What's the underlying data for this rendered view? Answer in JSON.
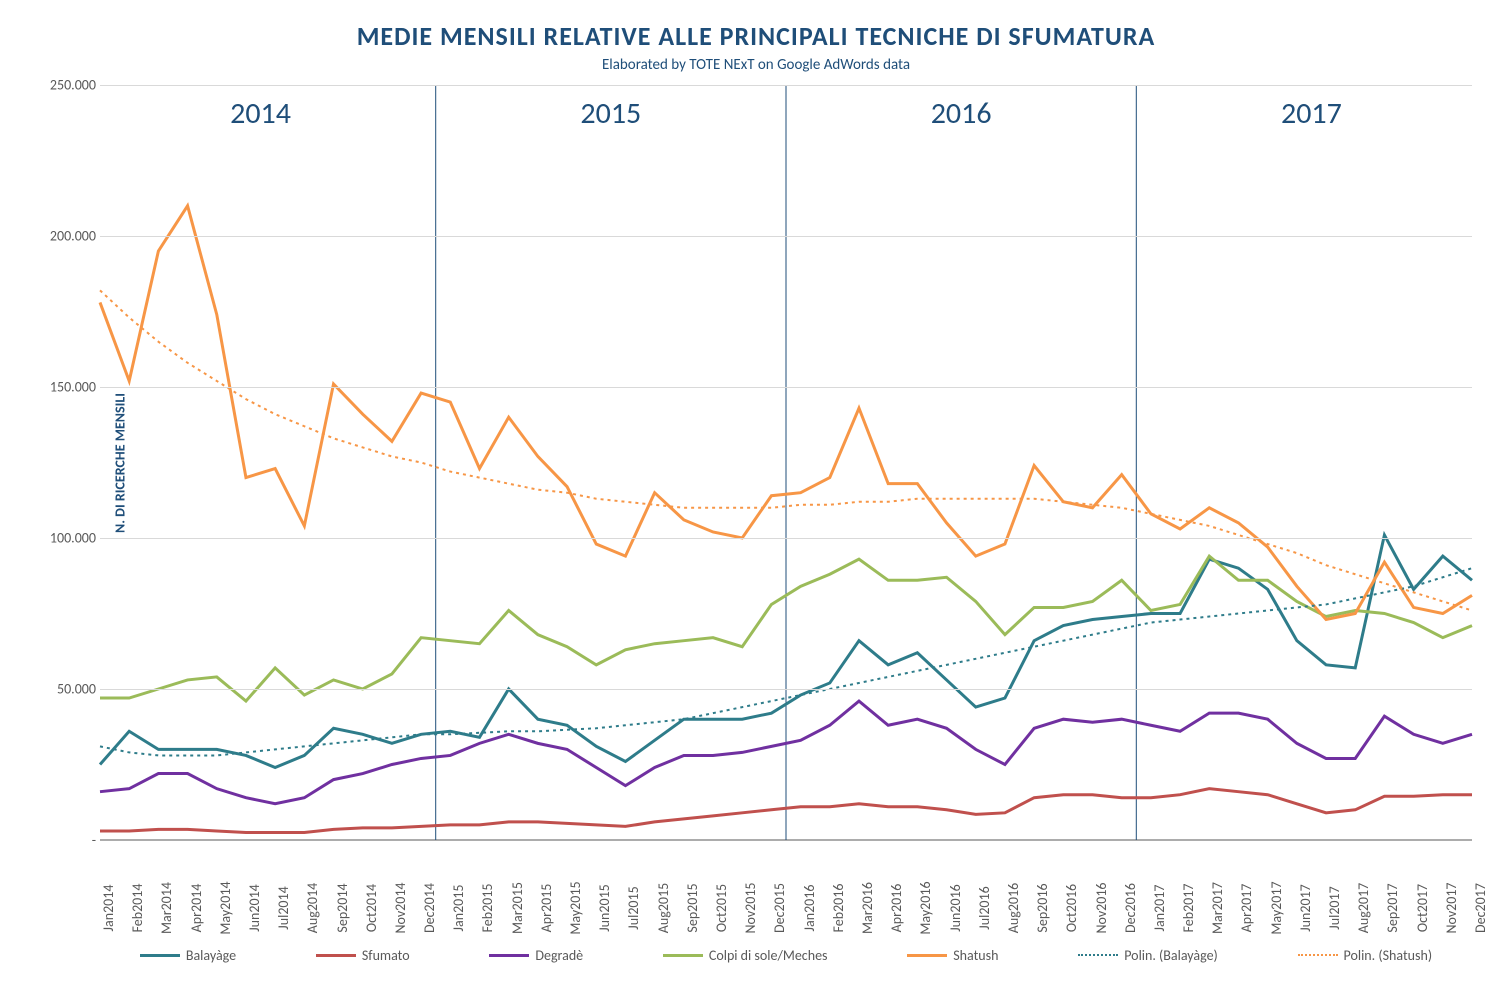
{
  "chart": {
    "type": "line",
    "title": "MEDIE MENSILI RELATIVE ALLE PRINCIPALI TECNICHE DI SFUMATURA",
    "subtitle": "Elaborated by TOTE NExT on Google AdWords data",
    "title_fontsize": 26,
    "subtitle_fontsize": 15,
    "title_color": "#1f4e79",
    "background_color": "#ffffff",
    "grid_color": "#d9d9d9",
    "axis_text_color": "#595959",
    "ylabel": "N. DI RICERCHE MENSILI",
    "ylabel_fontsize": 14,
    "ylim": [
      0,
      250000
    ],
    "ytick_step": 50000,
    "yticks": [
      "-",
      "50.000",
      "100.000",
      "150.000",
      "200.000",
      "250.000"
    ],
    "year_labels": [
      "2014",
      "2015",
      "2016",
      "2017"
    ],
    "year_fontsize": 30,
    "x_labels": [
      "Jan2014",
      "Feb2014",
      "Mar2014",
      "Apr2014",
      "May2014",
      "Jun2014",
      "Jul2014",
      "Aug2014",
      "Sep2014",
      "Oct2014",
      "Nov2014",
      "Dec2014",
      "Jan2015",
      "Feb2015",
      "Mar2015",
      "Apr2015",
      "May2015",
      "Jun2015",
      "Jul2015",
      "Aug2015",
      "Sep2015",
      "Oct2015",
      "Nov2015",
      "Dec2015",
      "Jan2016",
      "Feb2016",
      "Mar2016",
      "Apr2016",
      "May2016",
      "Jun2016",
      "Jul2016",
      "Aug2016",
      "Sep2016",
      "Oct2016",
      "Nov2016",
      "Dec2016",
      "Jan2017",
      "Feb2017",
      "Mar2017",
      "Apr2017",
      "May2017",
      "Jun2017",
      "Jul2017",
      "Aug2017",
      "Sep2017",
      "Oct2017",
      "Nov2017",
      "Dec2017"
    ],
    "series": [
      {
        "name": "Balayàge",
        "color": "#2e7c8a",
        "line_width": 3,
        "style": "solid",
        "values": [
          25000,
          36000,
          30000,
          30000,
          30000,
          28000,
          24000,
          28000,
          37000,
          35000,
          32000,
          35000,
          36000,
          34000,
          50000,
          40000,
          38000,
          31000,
          26000,
          33000,
          40000,
          40000,
          40000,
          42000,
          48000,
          52000,
          66000,
          58000,
          62000,
          53000,
          44000,
          47000,
          66000,
          71000,
          73000,
          74000,
          75000,
          75000,
          93000,
          90000,
          83000,
          66000,
          58000,
          57000,
          101000,
          83000,
          94000,
          86000
        ]
      },
      {
        "name": "Sfumato",
        "color": "#c0504d",
        "line_width": 3,
        "style": "solid",
        "values": [
          3000,
          3000,
          3500,
          3500,
          3000,
          2500,
          2500,
          2500,
          3500,
          4000,
          4000,
          4500,
          5000,
          5000,
          6000,
          6000,
          5500,
          5000,
          4500,
          6000,
          7000,
          8000,
          9000,
          10000,
          11000,
          11000,
          12000,
          11000,
          11000,
          10000,
          8500,
          9000,
          14000,
          15000,
          15000,
          14000,
          14000,
          15000,
          17000,
          16000,
          15000,
          12000,
          9000,
          10000,
          14500,
          14500,
          15000,
          15000
        ]
      },
      {
        "name": "Degradè",
        "color": "#7030a0",
        "line_width": 3,
        "style": "solid",
        "values": [
          16000,
          17000,
          22000,
          22000,
          17000,
          14000,
          12000,
          14000,
          20000,
          22000,
          25000,
          27000,
          28000,
          32000,
          35000,
          32000,
          30000,
          24000,
          18000,
          24000,
          28000,
          28000,
          29000,
          31000,
          33000,
          38000,
          46000,
          38000,
          40000,
          37000,
          30000,
          25000,
          37000,
          40000,
          39000,
          40000,
          38000,
          36000,
          42000,
          42000,
          40000,
          32000,
          27000,
          27000,
          41000,
          35000,
          32000,
          35000
        ]
      },
      {
        "name": "Colpi di sole/Meches",
        "color": "#9bbb59",
        "line_width": 3,
        "style": "solid",
        "values": [
          47000,
          47000,
          50000,
          53000,
          54000,
          46000,
          57000,
          48000,
          53000,
          50000,
          55000,
          67000,
          66000,
          65000,
          76000,
          68000,
          64000,
          58000,
          63000,
          65000,
          66000,
          67000,
          64000,
          78000,
          84000,
          88000,
          93000,
          86000,
          86000,
          87000,
          79000,
          68000,
          77000,
          77000,
          79000,
          86000,
          76000,
          78000,
          94000,
          86000,
          86000,
          79000,
          74000,
          76000,
          75000,
          72000,
          67000,
          71000
        ]
      },
      {
        "name": "Shatush",
        "color": "#f79646",
        "line_width": 3,
        "style": "solid",
        "values": [
          178000,
          152000,
          195000,
          210000,
          174000,
          120000,
          123000,
          104000,
          151000,
          141000,
          132000,
          148000,
          145000,
          123000,
          140000,
          127000,
          117000,
          98000,
          94000,
          115000,
          106000,
          102000,
          100000,
          114000,
          115000,
          120000,
          143000,
          118000,
          118000,
          105000,
          94000,
          98000,
          124000,
          112000,
          110000,
          121000,
          108000,
          103000,
          110000,
          105000,
          97000,
          84000,
          73000,
          75000,
          92000,
          77000,
          75000,
          81000
        ]
      },
      {
        "name": "Polin. (Balayàge)",
        "color": "#2e7c8a",
        "line_width": 2,
        "style": "dotted",
        "trendline": true,
        "values": [
          31000,
          29000,
          28000,
          28000,
          28000,
          29000,
          30000,
          31000,
          32000,
          33000,
          34000,
          35000,
          35000,
          35500,
          36000,
          36000,
          36500,
          37000,
          38000,
          39000,
          40000,
          42000,
          44000,
          46000,
          48000,
          50000,
          52000,
          54000,
          56000,
          58000,
          60000,
          62000,
          64000,
          66000,
          68000,
          70000,
          72000,
          73000,
          74000,
          75000,
          76000,
          77000,
          78000,
          80000,
          82000,
          84000,
          87000,
          90000
        ]
      },
      {
        "name": "Polin. (Shatush)",
        "color": "#f79646",
        "line_width": 2,
        "style": "dotted",
        "trendline": true,
        "values": [
          182000,
          173000,
          165000,
          158000,
          152000,
          146000,
          141000,
          137000,
          133000,
          130000,
          127000,
          125000,
          122000,
          120000,
          118000,
          116000,
          115000,
          113000,
          112000,
          111000,
          110000,
          110000,
          110000,
          110000,
          111000,
          111000,
          112000,
          112000,
          113000,
          113000,
          113000,
          113000,
          113000,
          112000,
          111000,
          110000,
          108000,
          106000,
          104000,
          101000,
          98000,
          95000,
          91000,
          88000,
          85000,
          82000,
          79000,
          76000
        ]
      }
    ]
  }
}
